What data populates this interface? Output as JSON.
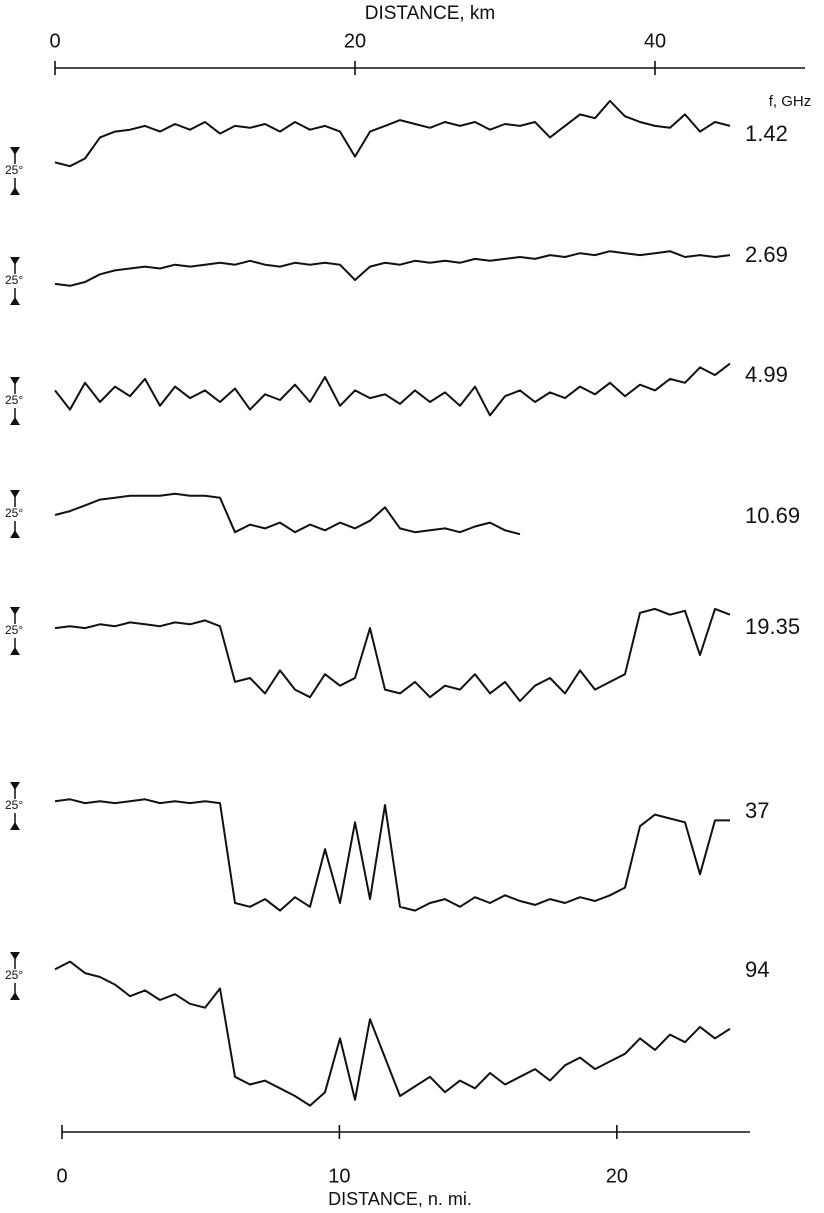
{
  "chart_data": {
    "type": "line",
    "x_label": "DISTANCE, km",
    "xlim": [
      0,
      50
    ],
    "xticks": [
      0,
      20,
      40
    ],
    "x2_label": "DISTANCE, n. mi.",
    "x2lim": [
      0,
      24.8
    ],
    "x2ticks": [
      0,
      10,
      20
    ],
    "legend_title": "f, GHz",
    "scale": {
      "value": 25,
      "label": "25°"
    },
    "x": [
      0,
      1,
      2,
      3,
      4,
      5,
      6,
      7,
      8,
      9,
      10,
      11,
      12,
      13,
      14,
      15,
      16,
      17,
      18,
      19,
      20,
      21,
      22,
      23,
      24,
      25,
      26,
      27,
      28,
      29,
      30,
      31,
      32,
      33,
      34,
      35,
      36,
      37,
      38,
      39,
      40,
      41,
      42,
      43,
      44,
      45,
      46
    ],
    "series": [
      {
        "name": "1.42",
        "color": "#111",
        "values": [
          17,
          15,
          19,
          30,
          33,
          34,
          36,
          33,
          37,
          34,
          38,
          32,
          36,
          35,
          37,
          33,
          38,
          34,
          36,
          33,
          20,
          33,
          36,
          39,
          37,
          35,
          38,
          36,
          38,
          34,
          37,
          36,
          38,
          30,
          36,
          42,
          40,
          49,
          41,
          38,
          36,
          35,
          42,
          33,
          38,
          36,
          null
        ]
      },
      {
        "name": "2.69",
        "color": "#111",
        "values": [
          11,
          10,
          12,
          16,
          18,
          19,
          20,
          19,
          21,
          20,
          21,
          22,
          21,
          23,
          21,
          20,
          22,
          21,
          22,
          21,
          13,
          20,
          22,
          21,
          23,
          22,
          23,
          22,
          24,
          23,
          24,
          25,
          24,
          26,
          25,
          27,
          26,
          28,
          27,
          26,
          27,
          28,
          25,
          26,
          25,
          26,
          null
        ]
      },
      {
        "name": "4.99",
        "color": "#111",
        "values": [
          18,
          8,
          22,
          12,
          20,
          15,
          24,
          10,
          20,
          14,
          18,
          12,
          19,
          8,
          16,
          13,
          21,
          12,
          25,
          10,
          18,
          14,
          16,
          11,
          18,
          12,
          17,
          10,
          20,
          5,
          15,
          18,
          12,
          17,
          14,
          20,
          16,
          22,
          15,
          21,
          18,
          24,
          22,
          30,
          26,
          32,
          null
        ]
      },
      {
        "name": "10.69",
        "color": "#111",
        "values": [
          12,
          14,
          17,
          20,
          21,
          22,
          22,
          22,
          23,
          22,
          22,
          21,
          3,
          7,
          5,
          8,
          3,
          7,
          4,
          8,
          5,
          9,
          16,
          5,
          3,
          4,
          5,
          3,
          6,
          8,
          4,
          2,
          null,
          null,
          null,
          null,
          null,
          null,
          null,
          null,
          null,
          null,
          null,
          null,
          null,
          null,
          null
        ]
      },
      {
        "name": "19.35",
        "color": "#111",
        "values": [
          14,
          15,
          14,
          16,
          15,
          17,
          16,
          15,
          17,
          16,
          18,
          15,
          -14,
          -12,
          -20,
          -8,
          -18,
          -22,
          -10,
          -16,
          -12,
          14,
          -18,
          -20,
          -14,
          -22,
          -16,
          -18,
          -10,
          -20,
          -14,
          -24,
          -16,
          -12,
          -20,
          -8,
          -18,
          -14,
          -10,
          22,
          24,
          21,
          23,
          0,
          24,
          21,
          null
        ]
      },
      {
        "name": "37",
        "color": "#111",
        "values": [
          15,
          16,
          14,
          15,
          14,
          15,
          16,
          14,
          15,
          14,
          15,
          14,
          -38,
          -40,
          -36,
          -42,
          -35,
          -40,
          -10,
          -38,
          4,
          -36,
          13,
          -40,
          -42,
          -38,
          -36,
          -40,
          -35,
          -38,
          -34,
          -37,
          -39,
          -36,
          -38,
          -35,
          -37,
          -34,
          -30,
          2,
          8,
          6,
          4,
          -23,
          5,
          5,
          null
        ]
      },
      {
        "name": "94",
        "color": "#111",
        "values": [
          16,
          20,
          14,
          12,
          8,
          2,
          5,
          0,
          3,
          -2,
          -4,
          6,
          -40,
          -44,
          -42,
          -46,
          -50,
          -55,
          -48,
          -20,
          -52,
          -10,
          -30,
          -50,
          -45,
          -40,
          -48,
          -42,
          -46,
          -38,
          -44,
          -40,
          -36,
          -42,
          -34,
          -30,
          -36,
          -32,
          -28,
          -20,
          -26,
          -18,
          -22,
          -14,
          -20,
          -15,
          null
        ]
      }
    ]
  }
}
